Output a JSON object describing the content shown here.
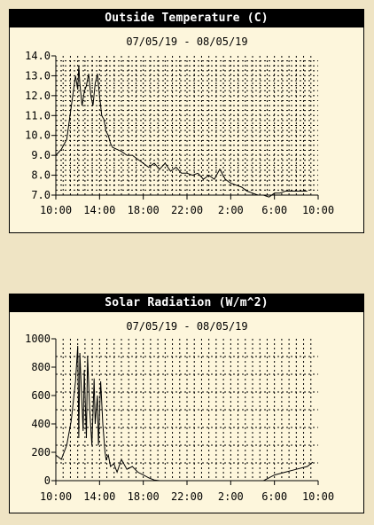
{
  "chart_data": [
    {
      "type": "line",
      "title": "Outside Temperature (C)",
      "subtitle": "07/05/19 - 08/05/19",
      "x_ticks": [
        "10:00",
        "14:00",
        "18:00",
        "22:00",
        "2:00",
        "6:00",
        "10:00"
      ],
      "y_ticks": [
        "14.0",
        "13.0",
        "12.0",
        "11.0",
        "10.0",
        "9.0",
        "8.0",
        "7.0"
      ],
      "xlim": [
        0,
        24
      ],
      "ylim": [
        7.0,
        14.0
      ],
      "grid": true,
      "series": [
        {
          "x": [
            0,
            0.5,
            1.0,
            1.3,
            1.6,
            1.8,
            2.0,
            2.1,
            2.2,
            2.4,
            2.6,
            2.8,
            3.0,
            3.2,
            3.4,
            3.6,
            3.8,
            4.0,
            4.2,
            4.4,
            4.6,
            4.8,
            5.0,
            5.2,
            5.6,
            6.0,
            6.5,
            7.0,
            7.5,
            8.0,
            8.5,
            9.0,
            9.5,
            10.0,
            10.5,
            11.0,
            11.5,
            12.0,
            12.5,
            13.0,
            13.5,
            14.0,
            14.5,
            15.0,
            15.5,
            16.0,
            16.5,
            17.0,
            17.5,
            18.0,
            18.5,
            19.0,
            19.5,
            20.0,
            20.5,
            21.0,
            21.5,
            22.0,
            22.5,
            23.0
          ],
          "y": [
            9.0,
            9.3,
            9.8,
            11.0,
            12.2,
            13.0,
            12.3,
            13.5,
            12.6,
            11.5,
            12.2,
            12.5,
            13.1,
            12.0,
            11.5,
            12.6,
            13.1,
            12.0,
            11.0,
            10.8,
            10.2,
            10.0,
            9.6,
            9.4,
            9.3,
            9.2,
            9.0,
            9.0,
            8.8,
            8.6,
            8.4,
            8.6,
            8.3,
            8.6,
            8.2,
            8.4,
            8.1,
            8.1,
            8.0,
            8.1,
            7.8,
            8.0,
            7.8,
            8.3,
            7.8,
            7.6,
            7.5,
            7.4,
            7.2,
            7.1,
            7.0,
            7.0,
            6.9,
            7.1,
            7.1,
            7.2,
            7.2,
            7.2,
            7.2,
            7.2
          ]
        }
      ]
    },
    {
      "type": "line",
      "title": "Solar Radiation (W/m^2)",
      "subtitle": "07/05/19 - 08/05/19",
      "x_ticks": [
        "10:00",
        "14:00",
        "18:00",
        "22:00",
        "2:00",
        "6:00",
        "10:00"
      ],
      "y_ticks": [
        "1000",
        "800",
        "600",
        "400",
        "200",
        "0"
      ],
      "xlim": [
        0,
        24
      ],
      "ylim": [
        0,
        1000
      ],
      "grid": true,
      "series": [
        {
          "x": [
            0,
            0.5,
            1.0,
            1.4,
            1.8,
            2.0,
            2.1,
            2.2,
            2.3,
            2.5,
            2.6,
            2.8,
            2.9,
            3.1,
            3.3,
            3.5,
            3.6,
            3.8,
            3.9,
            4.1,
            4.3,
            4.5,
            4.6,
            4.8,
            5.0,
            5.3,
            5.6,
            6.0,
            6.5,
            7.0,
            7.5,
            8.0,
            8.5,
            9.0,
            9.5,
            10.0,
            19.0,
            19.5,
            20.0,
            21.0,
            22.0,
            23.0,
            23.5
          ],
          "y": [
            180,
            150,
            250,
            420,
            700,
            950,
            300,
            900,
            700,
            350,
            780,
            300,
            880,
            500,
            250,
            720,
            400,
            600,
            250,
            700,
            400,
            200,
            150,
            180,
            100,
            120,
            60,
            150,
            80,
            100,
            60,
            40,
            20,
            5,
            0,
            0,
            0,
            20,
            40,
            60,
            80,
            100,
            130
          ]
        }
      ]
    }
  ]
}
